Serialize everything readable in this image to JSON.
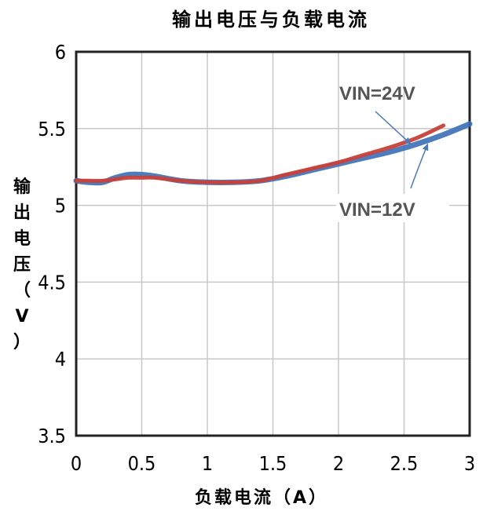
{
  "chart_data": {
    "type": "line",
    "title": "输出电压与负载电流",
    "xlabel": "负载电流（A）",
    "ylabel_chars": [
      "输",
      "出",
      "电",
      "压",
      "（",
      "V",
      "）"
    ],
    "xlim": [
      0,
      3
    ],
    "ylim": [
      3.5,
      6
    ],
    "x_ticks": [
      "0",
      "0.5",
      "1",
      "1.5",
      "2",
      "2.5",
      "3"
    ],
    "y_ticks": [
      "3.5",
      "4",
      "4.5",
      "5",
      "5.5",
      "6"
    ],
    "grid": true,
    "series": [
      {
        "name": "VIN=12V",
        "color": "#3b6fb6",
        "x": [
          0,
          0.1,
          0.2,
          0.3,
          0.4,
          0.5,
          0.6,
          0.8,
          1.0,
          1.2,
          1.4,
          1.6,
          1.8,
          2.0,
          2.2,
          2.4,
          2.6,
          2.8,
          3.0
        ],
        "y": [
          5.16,
          5.15,
          5.15,
          5.18,
          5.2,
          5.2,
          5.19,
          5.16,
          5.15,
          5.15,
          5.16,
          5.19,
          5.23,
          5.27,
          5.31,
          5.35,
          5.4,
          5.46,
          5.53
        ]
      },
      {
        "name": "VIN=24V",
        "color": "#c8413a",
        "x": [
          0,
          0.1,
          0.2,
          0.3,
          0.4,
          0.5,
          0.6,
          0.8,
          1.0,
          1.2,
          1.4,
          1.6,
          1.8,
          2.0,
          2.2,
          2.4,
          2.6,
          2.8
        ],
        "y": [
          5.16,
          5.16,
          5.16,
          5.17,
          5.18,
          5.18,
          5.18,
          5.16,
          5.15,
          5.15,
          5.16,
          5.2,
          5.24,
          5.28,
          5.33,
          5.38,
          5.44,
          5.52
        ]
      }
    ],
    "annotations": [
      {
        "text": "VIN=24V",
        "series": "VIN=24V"
      },
      {
        "text": "VIN=12V",
        "series": "VIN=12V"
      }
    ]
  }
}
